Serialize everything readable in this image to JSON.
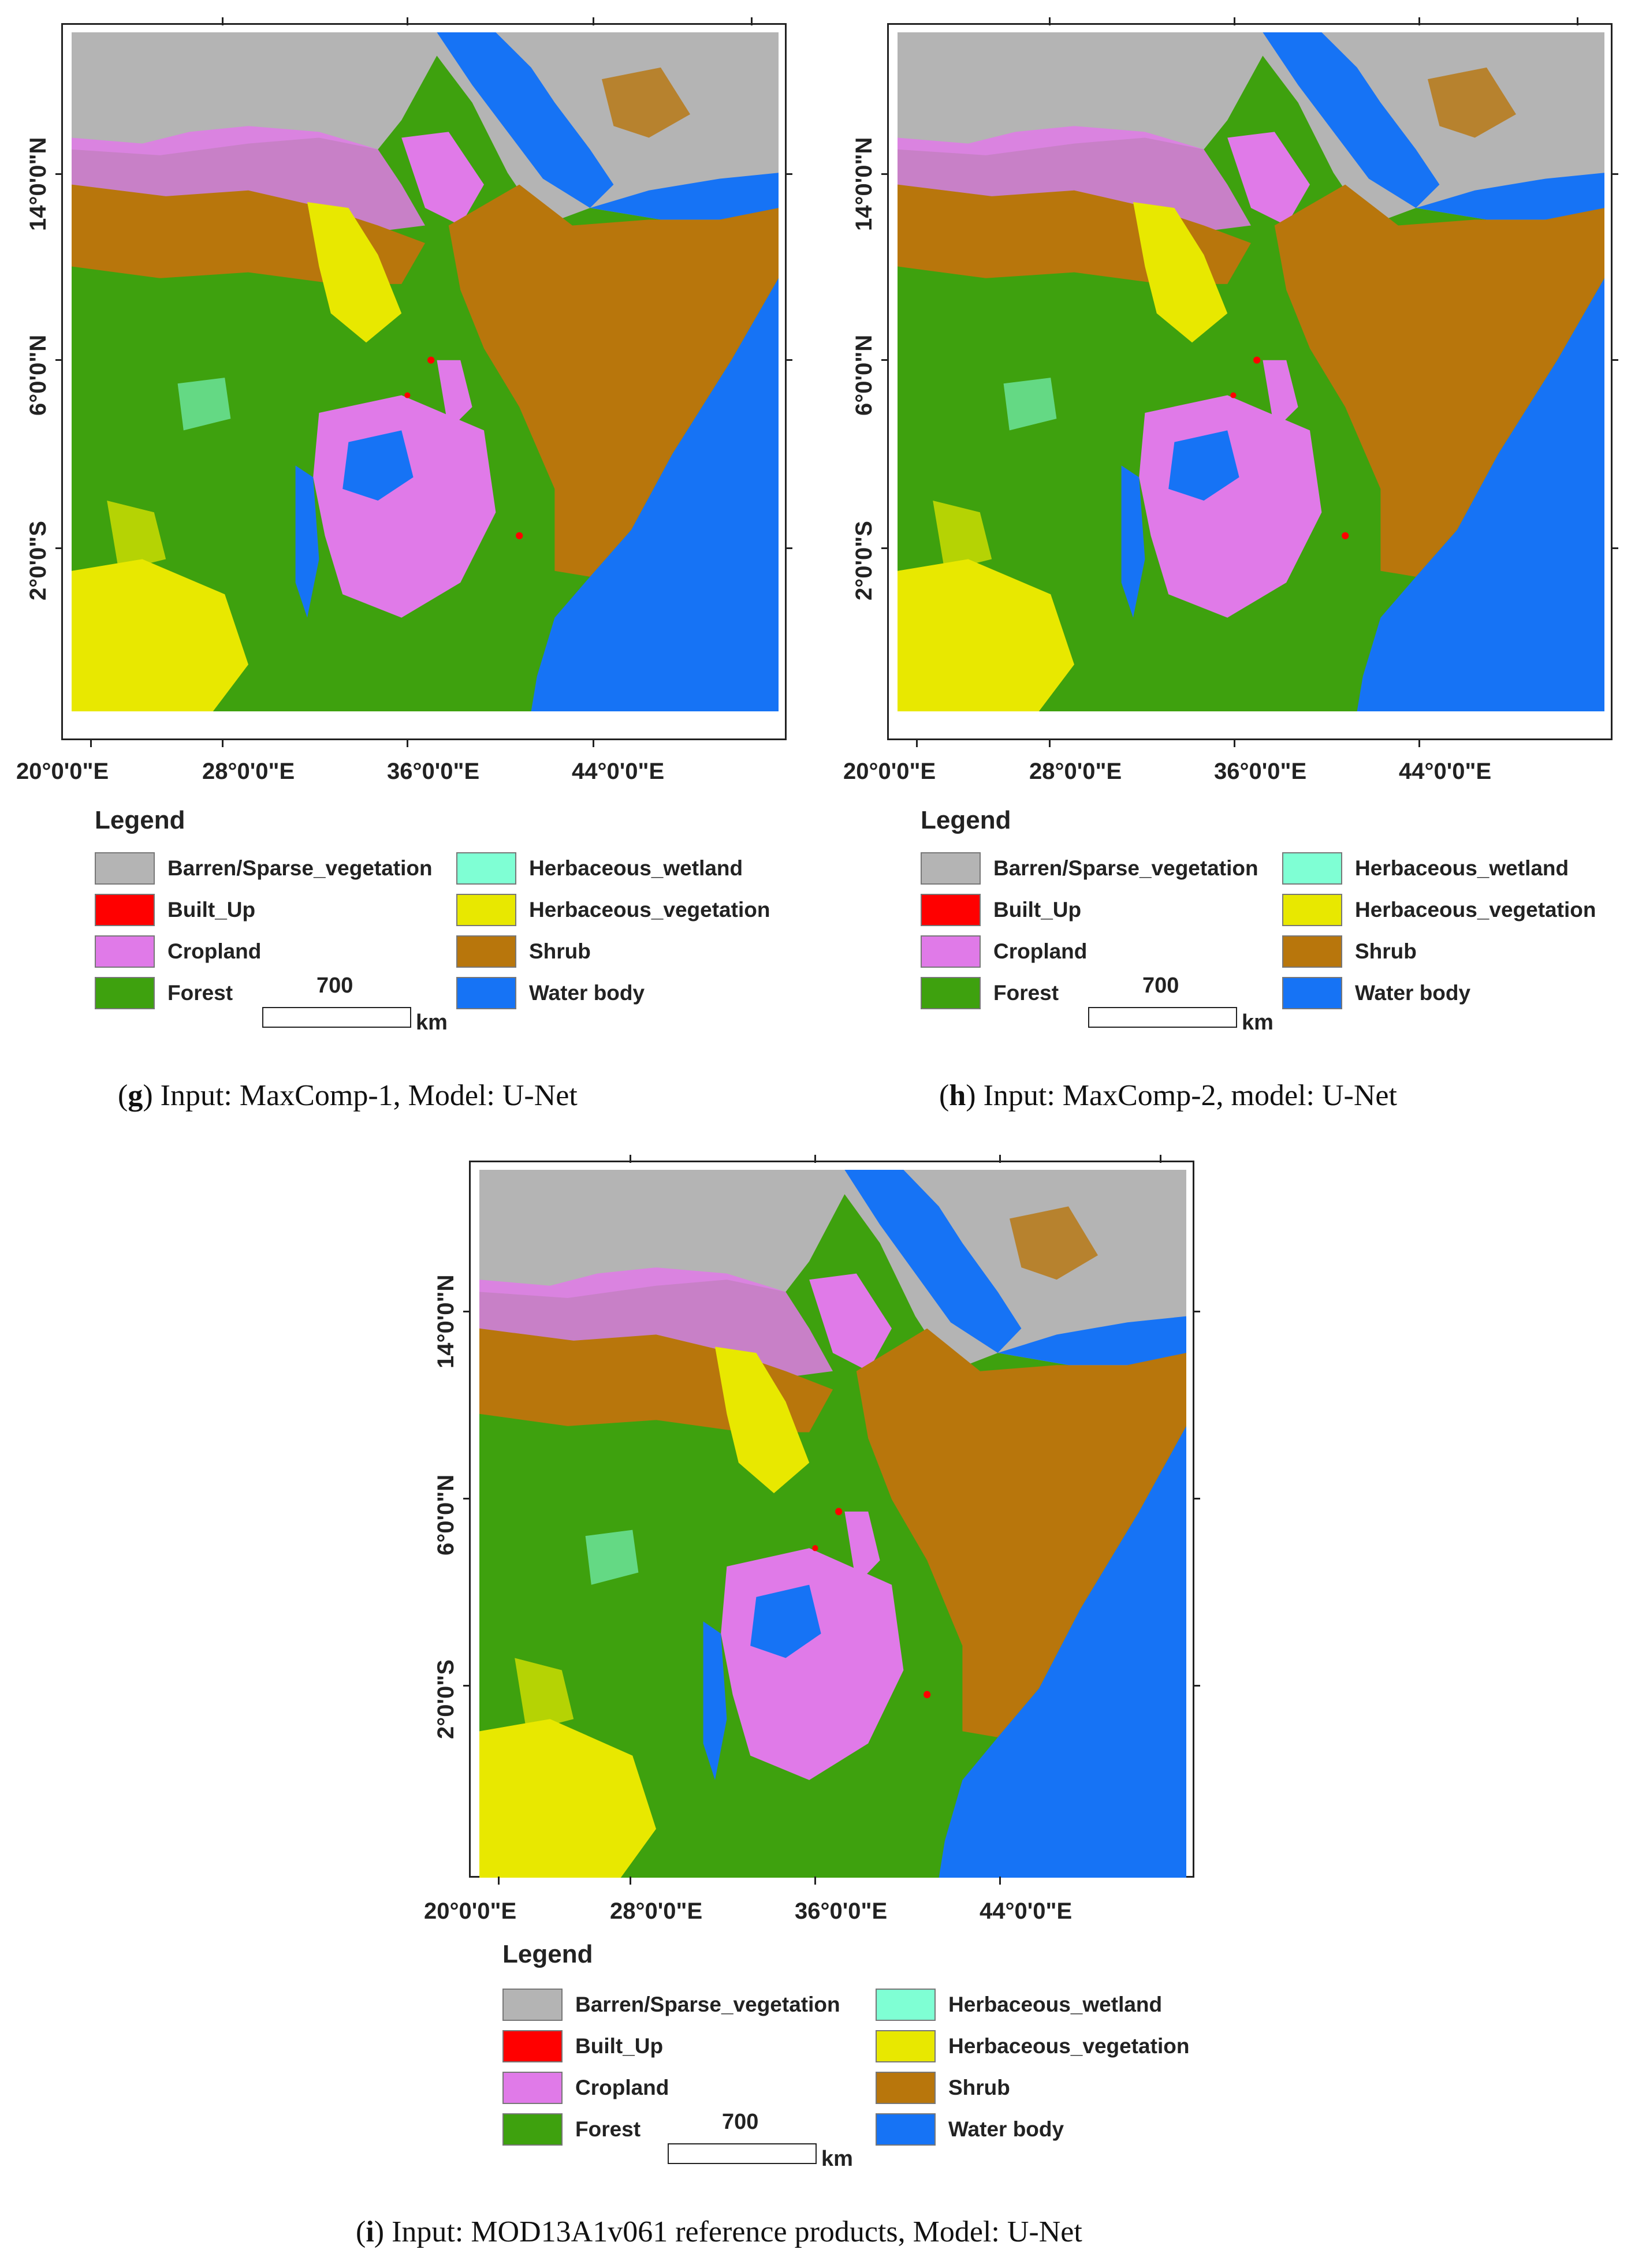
{
  "colors": {
    "barren": "#b4b4b4",
    "built_up": "#ff0000",
    "cropland": "#e07ae8",
    "forest": "#3ea10e",
    "wetland": "#7fffd4",
    "herbaceous": "#e8e800",
    "shrub": "#b8760c",
    "water": "#1673f5"
  },
  "axes": {
    "lat_labels": [
      "14°0'0\"N",
      "6°0'0\"N",
      "2°0'0\"S"
    ],
    "lon_labels": [
      "20°0'0\"E",
      "28°0'0\"E",
      "36°0'0\"E",
      "44°0'0\"E"
    ]
  },
  "legend": {
    "title": "Legend",
    "items": [
      {
        "label": "Barren/Sparse_vegetation",
        "color": "#b4b4b4"
      },
      {
        "label": "Built_Up",
        "color": "#ff0000"
      },
      {
        "label": "Cropland",
        "color": "#e07ae8"
      },
      {
        "label": "Forest",
        "color": "#3ea10e"
      },
      {
        "label": "Herbaceous_wetland",
        "color": "#7fffd4"
      },
      {
        "label": "Herbaceous_vegetation",
        "color": "#e8e800"
      },
      {
        "label": "Shrub",
        "color": "#b8760c"
      },
      {
        "label": "Water body",
        "color": "#1673f5"
      }
    ],
    "scale_value": "700",
    "scale_unit": "km"
  },
  "panels": [
    {
      "letter": "g",
      "caption_rest": " Input: MaxComp-1, Model: U-Net"
    },
    {
      "letter": "h",
      "caption_rest": " Input: MaxComp-2, model: U-Net"
    },
    {
      "letter": "i",
      "caption_rest": " Input: MOD13A1v061 reference products, Model: U-Net"
    }
  ]
}
